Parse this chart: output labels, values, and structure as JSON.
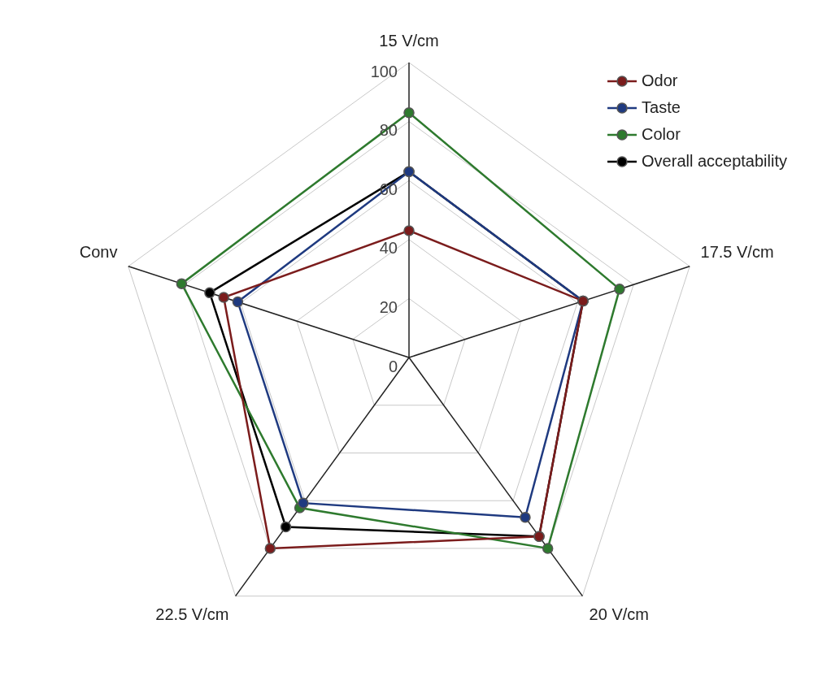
{
  "chart_data": {
    "type": "radar",
    "categories": [
      "15 V/cm",
      "17.5 V/cm",
      "20 V/cm",
      "22.5 V/cm",
      "Conv"
    ],
    "series": [
      {
        "name": "Odor",
        "color": "#7b1c1c",
        "values": [
          43,
          62,
          75,
          80,
          66
        ]
      },
      {
        "name": "Taste",
        "color": "#1f3a80",
        "values": [
          63,
          62,
          67,
          61,
          61
        ]
      },
      {
        "name": "Color",
        "color": "#2e7a2e",
        "values": [
          83,
          75,
          80,
          63,
          81
        ]
      },
      {
        "name": "Overall acceptability",
        "color": "#000000",
        "values": [
          63,
          62,
          75,
          71,
          71
        ]
      }
    ],
    "ylim": [
      0,
      100
    ],
    "yticks": [
      0,
      20,
      40,
      60,
      80,
      100
    ],
    "grid": true,
    "legend": "top right",
    "marker": "circle"
  }
}
